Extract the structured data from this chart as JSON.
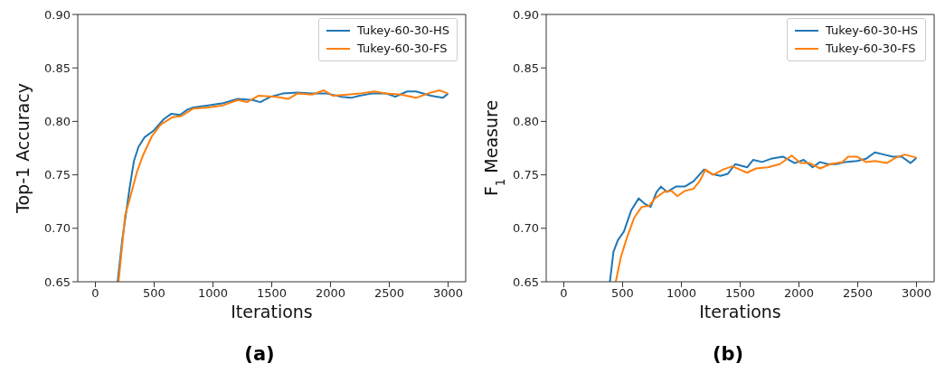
{
  "chart_data": [
    {
      "type": "line",
      "title": "(a)",
      "xlabel": "Iterations",
      "ylabel": "Top-1 Accuracy",
      "xlim": [
        -150,
        3150
      ],
      "ylim": [
        0.65,
        0.9
      ],
      "xticks": [
        0,
        500,
        1000,
        1500,
        2000,
        2500,
        3000
      ],
      "yticks": [
        0.65,
        {
          "value": 0.7,
          "label": "0.70"
        },
        0.75,
        {
          "value": 0.8,
          "label": "0.80"
        },
        0.85,
        {
          "value": 0.9,
          "label": "0.90"
        }
      ],
      "legend": "top right",
      "grid": false,
      "series": [
        {
          "name": "Tukey-60-30-HS",
          "color": "#1f77b4",
          "x": [
            189,
            227,
            290,
            328,
            366,
            417,
            492,
            581,
            644,
            720,
            783,
            833,
            960,
            1086,
            1212,
            1338,
            1402,
            1490,
            1591,
            1717,
            1843,
            1970,
            2096,
            2172,
            2247,
            2348,
            2475,
            2551,
            2652,
            2727,
            2854,
            2955,
            3000
          ],
          "values": [
            0.65,
            0.688,
            0.737,
            0.763,
            0.776,
            0.785,
            0.791,
            0.802,
            0.807,
            0.806,
            0.811,
            0.813,
            0.815,
            0.817,
            0.821,
            0.82,
            0.818,
            0.823,
            0.826,
            0.827,
            0.826,
            0.826,
            0.823,
            0.822,
            0.824,
            0.826,
            0.826,
            0.823,
            0.828,
            0.828,
            0.824,
            0.822,
            0.826
          ]
        },
        {
          "name": "Tukey-60-30-FS",
          "color": "#ff7f0e",
          "x": [
            197,
            253,
            303,
            354,
            404,
            480,
            556,
            657,
            732,
            833,
            960,
            1086,
            1212,
            1288,
            1389,
            1540,
            1641,
            1717,
            1843,
            1944,
            2020,
            2146,
            2247,
            2374,
            2475,
            2601,
            2727,
            2854,
            2929,
            3000
          ],
          "values": [
            0.65,
            0.712,
            0.732,
            0.753,
            0.768,
            0.786,
            0.797,
            0.804,
            0.805,
            0.812,
            0.813,
            0.815,
            0.82,
            0.818,
            0.824,
            0.823,
            0.821,
            0.826,
            0.825,
            0.829,
            0.824,
            0.825,
            0.826,
            0.828,
            0.826,
            0.825,
            0.822,
            0.827,
            0.829,
            0.826
          ]
        }
      ]
    },
    {
      "type": "line",
      "title": "(b)",
      "xlabel": "Iterations",
      "ylabel": "F$_{1}$ Measure",
      "xlim": [
        -150,
        3150
      ],
      "ylim": [
        0.65,
        0.9
      ],
      "xticks": [
        0,
        500,
        1000,
        1500,
        2000,
        2500,
        3000
      ],
      "yticks": [
        0.65,
        {
          "value": 0.7,
          "label": "0.70"
        },
        0.75,
        {
          "value": 0.8,
          "label": "0.80"
        },
        0.85,
        {
          "value": 0.9,
          "label": "0.90"
        }
      ],
      "legend": "top right",
      "grid": false,
      "series": [
        {
          "name": "Tukey-60-30-HS",
          "color": "#1f77b4",
          "x": [
            392,
            422,
            460,
            511,
            574,
            637,
            687,
            738,
            789,
            826,
            877,
            953,
            1029,
            1104,
            1193,
            1256,
            1332,
            1395,
            1458,
            1559,
            1610,
            1686,
            1762,
            1863,
            1964,
            2040,
            2116,
            2179,
            2242,
            2318,
            2393,
            2494,
            2570,
            2646,
            2722,
            2798,
            2874,
            2950,
            3000
          ],
          "values": [
            0.65,
            0.678,
            0.689,
            0.697,
            0.717,
            0.728,
            0.723,
            0.72,
            0.734,
            0.739,
            0.734,
            0.739,
            0.739,
            0.744,
            0.755,
            0.751,
            0.749,
            0.751,
            0.76,
            0.757,
            0.764,
            0.762,
            0.765,
            0.767,
            0.761,
            0.764,
            0.757,
            0.762,
            0.76,
            0.76,
            0.762,
            0.763,
            0.765,
            0.771,
            0.769,
            0.767,
            0.767,
            0.761,
            0.766
          ]
        },
        {
          "name": "Tukey-60-30-FS",
          "color": "#ff7f0e",
          "x": [
            442,
            485,
            536,
            599,
            662,
            726,
            776,
            852,
            915,
            966,
            1029,
            1104,
            1155,
            1205,
            1268,
            1357,
            1433,
            1559,
            1635,
            1736,
            1837,
            1938,
            2014,
            2090,
            2179,
            2267,
            2368,
            2419,
            2494,
            2570,
            2646,
            2747,
            2823,
            2899,
            3000
          ],
          "values": [
            0.65,
            0.673,
            0.691,
            0.71,
            0.72,
            0.721,
            0.728,
            0.734,
            0.735,
            0.73,
            0.735,
            0.737,
            0.744,
            0.755,
            0.75,
            0.755,
            0.758,
            0.752,
            0.756,
            0.757,
            0.76,
            0.768,
            0.761,
            0.761,
            0.756,
            0.76,
            0.762,
            0.767,
            0.767,
            0.762,
            0.763,
            0.761,
            0.766,
            0.769,
            0.766
          ]
        }
      ]
    }
  ]
}
